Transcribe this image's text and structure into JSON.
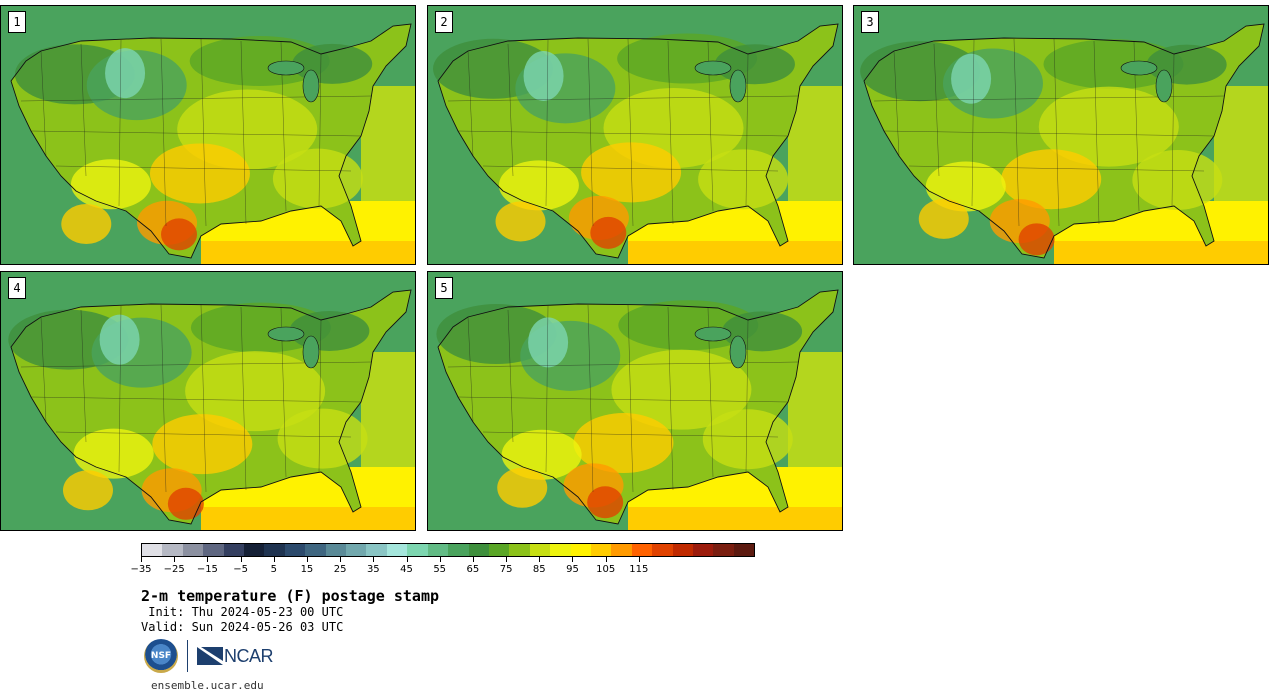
{
  "panels": [
    {
      "label": "1"
    },
    {
      "label": "2"
    },
    {
      "label": "3"
    },
    {
      "label": "4"
    },
    {
      "label": "5"
    }
  ],
  "colorbar": {
    "colors": [
      "#e0e0e6",
      "#b6b9c4",
      "#8c91a1",
      "#5f6781",
      "#343f60",
      "#152036",
      "#1f3350",
      "#2c4a6c",
      "#3f6680",
      "#5a8a97",
      "#72a8ad",
      "#8ac5c4",
      "#a5e6dc",
      "#7dd6b0",
      "#62bb85",
      "#4aa35d",
      "#3e8f3c",
      "#5aa626",
      "#8cc21a",
      "#c7df13",
      "#eef40f",
      "#fff200",
      "#ffcc00",
      "#ff9a00",
      "#ff6200",
      "#e04200",
      "#c02a00",
      "#9c1c0c",
      "#7a1e10",
      "#5c1a10"
    ],
    "tick_values": [
      -35,
      -25,
      -15,
      -5,
      5,
      15,
      25,
      35,
      45,
      55,
      65,
      75,
      85,
      95,
      105,
      115
    ],
    "tick_labels": [
      "−35",
      "−25",
      "−15",
      "−5",
      "5",
      "15",
      "25",
      "35",
      "45",
      "55",
      "65",
      "75",
      "85",
      "95",
      "105",
      "115"
    ],
    "min": -35,
    "max": 115
  },
  "title": "2-m temperature (F) postage stamp",
  "init_line": " Init: Thu 2024-05-23 00 UTC",
  "valid_line": "Valid: Sun 2024-05-26 03 UTC",
  "logos": {
    "nsf": "NSF",
    "ncar": "NCAR"
  },
  "url": "ensemble.ucar.edu"
}
